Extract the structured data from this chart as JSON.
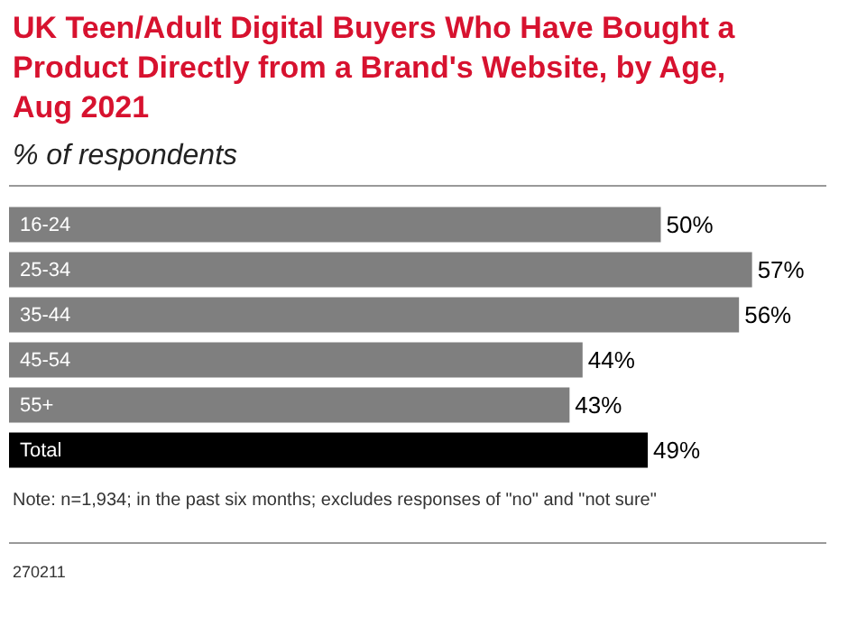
{
  "chart_data": {
    "type": "bar",
    "orientation": "horizontal",
    "title": "UK Teen/Adult Digital Buyers Who Have Bought a Product Directly from a Brand's Website, by Age, Aug 2021",
    "subtitle": "% of respondents",
    "categories": [
      "16-24",
      "25-34",
      "35-44",
      "45-54",
      "55+",
      "Total"
    ],
    "values": [
      50,
      57,
      56,
      44,
      43,
      49
    ],
    "colors": [
      "#7f7f7f",
      "#7f7f7f",
      "#7f7f7f",
      "#7f7f7f",
      "#7f7f7f",
      "#000000"
    ],
    "value_labels": [
      "50%",
      "57%",
      "56%",
      "44%",
      "43%",
      "49%"
    ],
    "tick_labels": false,
    "legend": false,
    "annotations": [
      "Note: n=1,934; in the past six months; excludes responses of \"no\" and \"not sure\"",
      "270211"
    ]
  }
}
